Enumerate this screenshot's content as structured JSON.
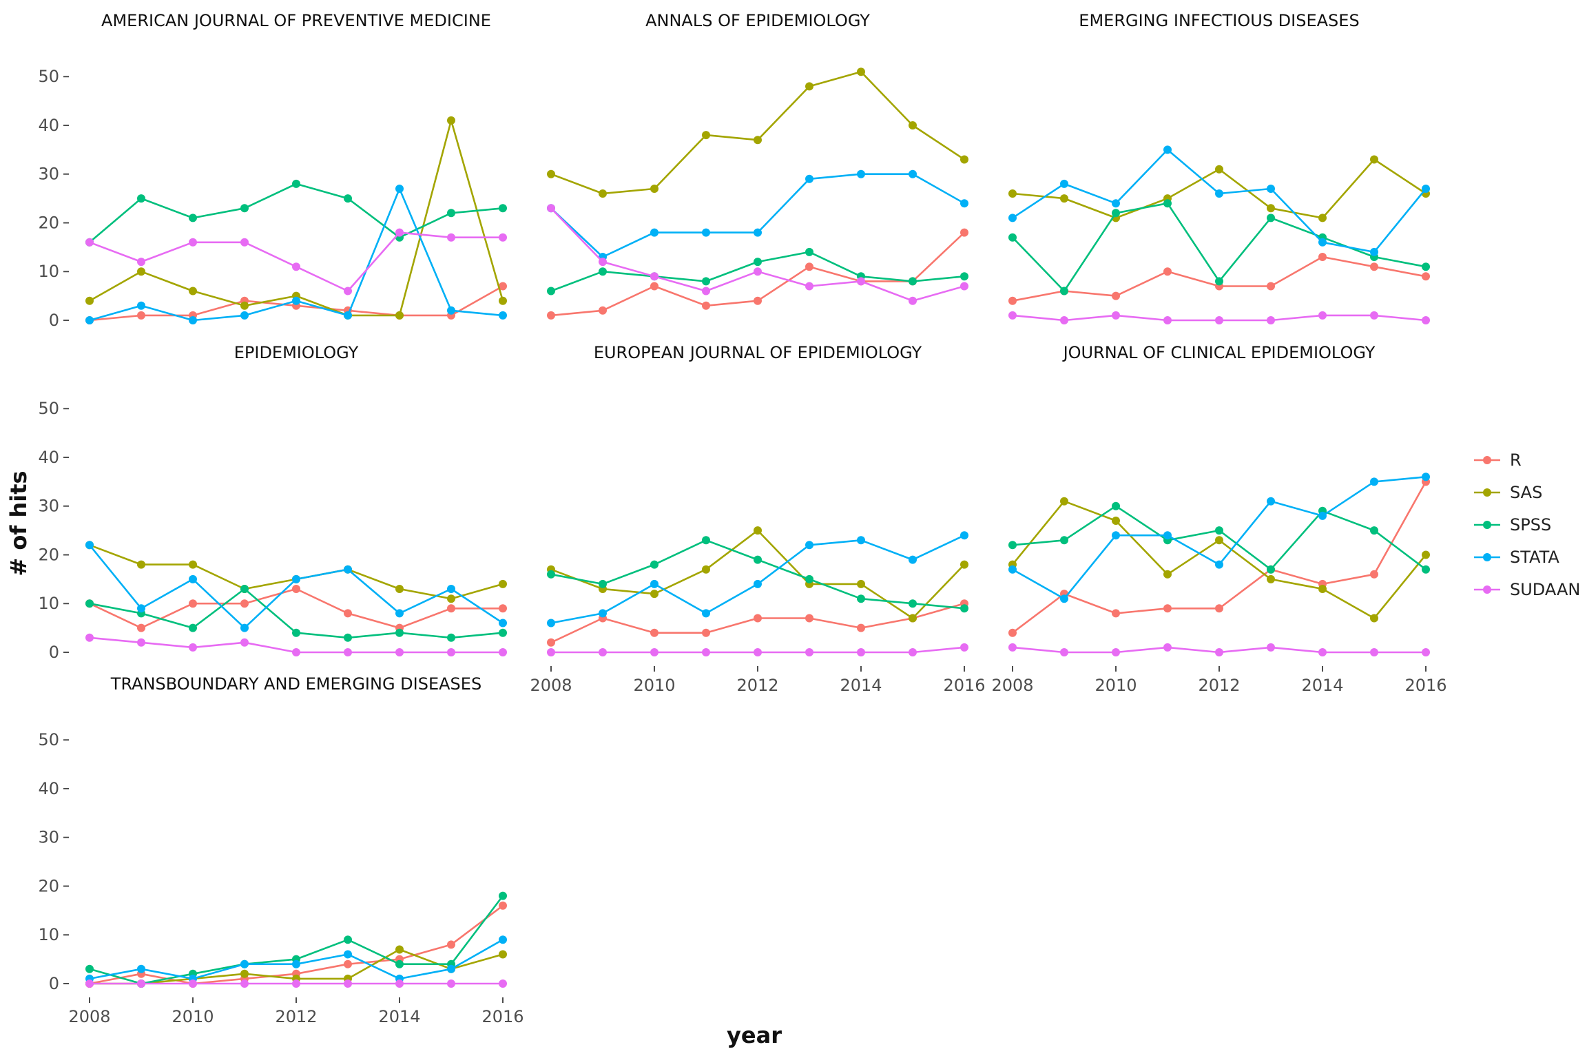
{
  "chart_data": {
    "type": "line",
    "xlabel": "year",
    "ylabel": "# of hits",
    "x": [
      2008,
      2009,
      2010,
      2011,
      2012,
      2013,
      2014,
      2015,
      2016
    ],
    "x_ticks": [
      2008,
      2010,
      2012,
      2014,
      2016
    ],
    "y_ticks": [
      0,
      10,
      20,
      30,
      40,
      50
    ],
    "ylim": [
      0,
      53
    ],
    "xlim": [
      2008,
      2016
    ],
    "grid": false,
    "legend_position": "right",
    "series_names": [
      "R",
      "SAS",
      "SPSS",
      "STATA",
      "SUDAAN"
    ],
    "colors": {
      "R": "#F8766D",
      "SAS": "#A3A500",
      "SPSS": "#00BF7D",
      "STATA": "#00B0F6",
      "SUDAAN": "#E76BF3"
    },
    "panels": [
      {
        "title": "AMERICAN JOURNAL OF PREVENTIVE MEDICINE",
        "series": [
          {
            "name": "R",
            "values": [
              0,
              1,
              1,
              4,
              3,
              2,
              1,
              1,
              7
            ]
          },
          {
            "name": "SAS",
            "values": [
              4,
              10,
              6,
              3,
              5,
              1,
              1,
              41,
              4
            ]
          },
          {
            "name": "SPSS",
            "values": [
              16,
              25,
              21,
              23,
              28,
              25,
              17,
              22,
              23
            ]
          },
          {
            "name": "STATA",
            "values": [
              0,
              3,
              0,
              1,
              4,
              1,
              27,
              2,
              1
            ]
          },
          {
            "name": "SUDAAN",
            "values": [
              16,
              12,
              16,
              16,
              11,
              6,
              18,
              17,
              17
            ]
          }
        ]
      },
      {
        "title": "ANNALS OF EPIDEMIOLOGY",
        "series": [
          {
            "name": "R",
            "values": [
              1,
              2,
              7,
              3,
              4,
              11,
              8,
              8,
              18
            ]
          },
          {
            "name": "SAS",
            "values": [
              30,
              26,
              27,
              38,
              37,
              48,
              51,
              40,
              33
            ]
          },
          {
            "name": "SPSS",
            "values": [
              6,
              10,
              9,
              8,
              12,
              14,
              9,
              8,
              9
            ]
          },
          {
            "name": "STATA",
            "values": [
              23,
              13,
              18,
              18,
              18,
              29,
              30,
              30,
              24
            ]
          },
          {
            "name": "SUDAAN",
            "values": [
              23,
              12,
              9,
              6,
              10,
              7,
              8,
              4,
              7
            ]
          }
        ]
      },
      {
        "title": "EMERGING INFECTIOUS DISEASES",
        "series": [
          {
            "name": "R",
            "values": [
              4,
              6,
              5,
              10,
              7,
              7,
              13,
              11,
              9
            ]
          },
          {
            "name": "SAS",
            "values": [
              26,
              25,
              21,
              25,
              31,
              23,
              21,
              33,
              26
            ]
          },
          {
            "name": "SPSS",
            "values": [
              17,
              6,
              22,
              24,
              8,
              21,
              17,
              13,
              11
            ]
          },
          {
            "name": "STATA",
            "values": [
              21,
              28,
              24,
              35,
              26,
              27,
              16,
              14,
              27
            ]
          },
          {
            "name": "SUDAAN",
            "values": [
              1,
              0,
              1,
              0,
              0,
              0,
              1,
              1,
              0
            ]
          }
        ]
      },
      {
        "title": "EPIDEMIOLOGY",
        "series": [
          {
            "name": "R",
            "values": [
              10,
              5,
              10,
              10,
              13,
              8,
              5,
              9,
              9
            ]
          },
          {
            "name": "SAS",
            "values": [
              22,
              18,
              18,
              13,
              15,
              17,
              13,
              11,
              14
            ]
          },
          {
            "name": "SPSS",
            "values": [
              10,
              8,
              5,
              13,
              4,
              3,
              4,
              3,
              4
            ]
          },
          {
            "name": "STATA",
            "values": [
              22,
              9,
              15,
              5,
              15,
              17,
              8,
              13,
              6
            ]
          },
          {
            "name": "SUDAAN",
            "values": [
              3,
              2,
              1,
              2,
              0,
              0,
              0,
              0,
              0
            ]
          }
        ]
      },
      {
        "title": "EUROPEAN JOURNAL OF EPIDEMIOLOGY",
        "series": [
          {
            "name": "R",
            "values": [
              2,
              7,
              4,
              4,
              7,
              7,
              5,
              7,
              10
            ]
          },
          {
            "name": "SAS",
            "values": [
              17,
              13,
              12,
              17,
              25,
              14,
              14,
              7,
              18
            ]
          },
          {
            "name": "SPSS",
            "values": [
              16,
              14,
              18,
              23,
              19,
              15,
              11,
              10,
              9
            ]
          },
          {
            "name": "STATA",
            "values": [
              6,
              8,
              14,
              8,
              14,
              22,
              23,
              19,
              24
            ]
          },
          {
            "name": "SUDAAN",
            "values": [
              0,
              0,
              0,
              0,
              0,
              0,
              0,
              0,
              1
            ]
          }
        ]
      },
      {
        "title": "JOURNAL OF CLINICAL EPIDEMIOLOGY",
        "series": [
          {
            "name": "R",
            "values": [
              4,
              12,
              8,
              9,
              9,
              17,
              14,
              16,
              35
            ]
          },
          {
            "name": "SAS",
            "values": [
              18,
              31,
              27,
              16,
              23,
              15,
              13,
              7,
              20
            ]
          },
          {
            "name": "SPSS",
            "values": [
              22,
              23,
              30,
              23,
              25,
              17,
              29,
              25,
              17
            ]
          },
          {
            "name": "STATA",
            "values": [
              17,
              11,
              24,
              24,
              18,
              31,
              28,
              35,
              36
            ]
          },
          {
            "name": "SUDAAN",
            "values": [
              1,
              0,
              0,
              1,
              0,
              1,
              0,
              0,
              0
            ]
          }
        ]
      },
      {
        "title": "TRANSBOUNDARY AND EMERGING DISEASES",
        "series": [
          {
            "name": "R",
            "values": [
              0,
              2,
              0,
              1,
              2,
              4,
              5,
              8,
              16
            ]
          },
          {
            "name": "SAS",
            "values": [
              0,
              0,
              1,
              2,
              1,
              1,
              7,
              3,
              6
            ]
          },
          {
            "name": "SPSS",
            "values": [
              3,
              0,
              2,
              4,
              5,
              9,
              4,
              4,
              18
            ]
          },
          {
            "name": "STATA",
            "values": [
              1,
              3,
              1,
              4,
              4,
              6,
              1,
              3,
              9
            ]
          },
          {
            "name": "SUDAAN",
            "values": [
              0,
              0,
              0,
              0,
              0,
              0,
              0,
              0,
              0
            ]
          }
        ]
      }
    ]
  }
}
